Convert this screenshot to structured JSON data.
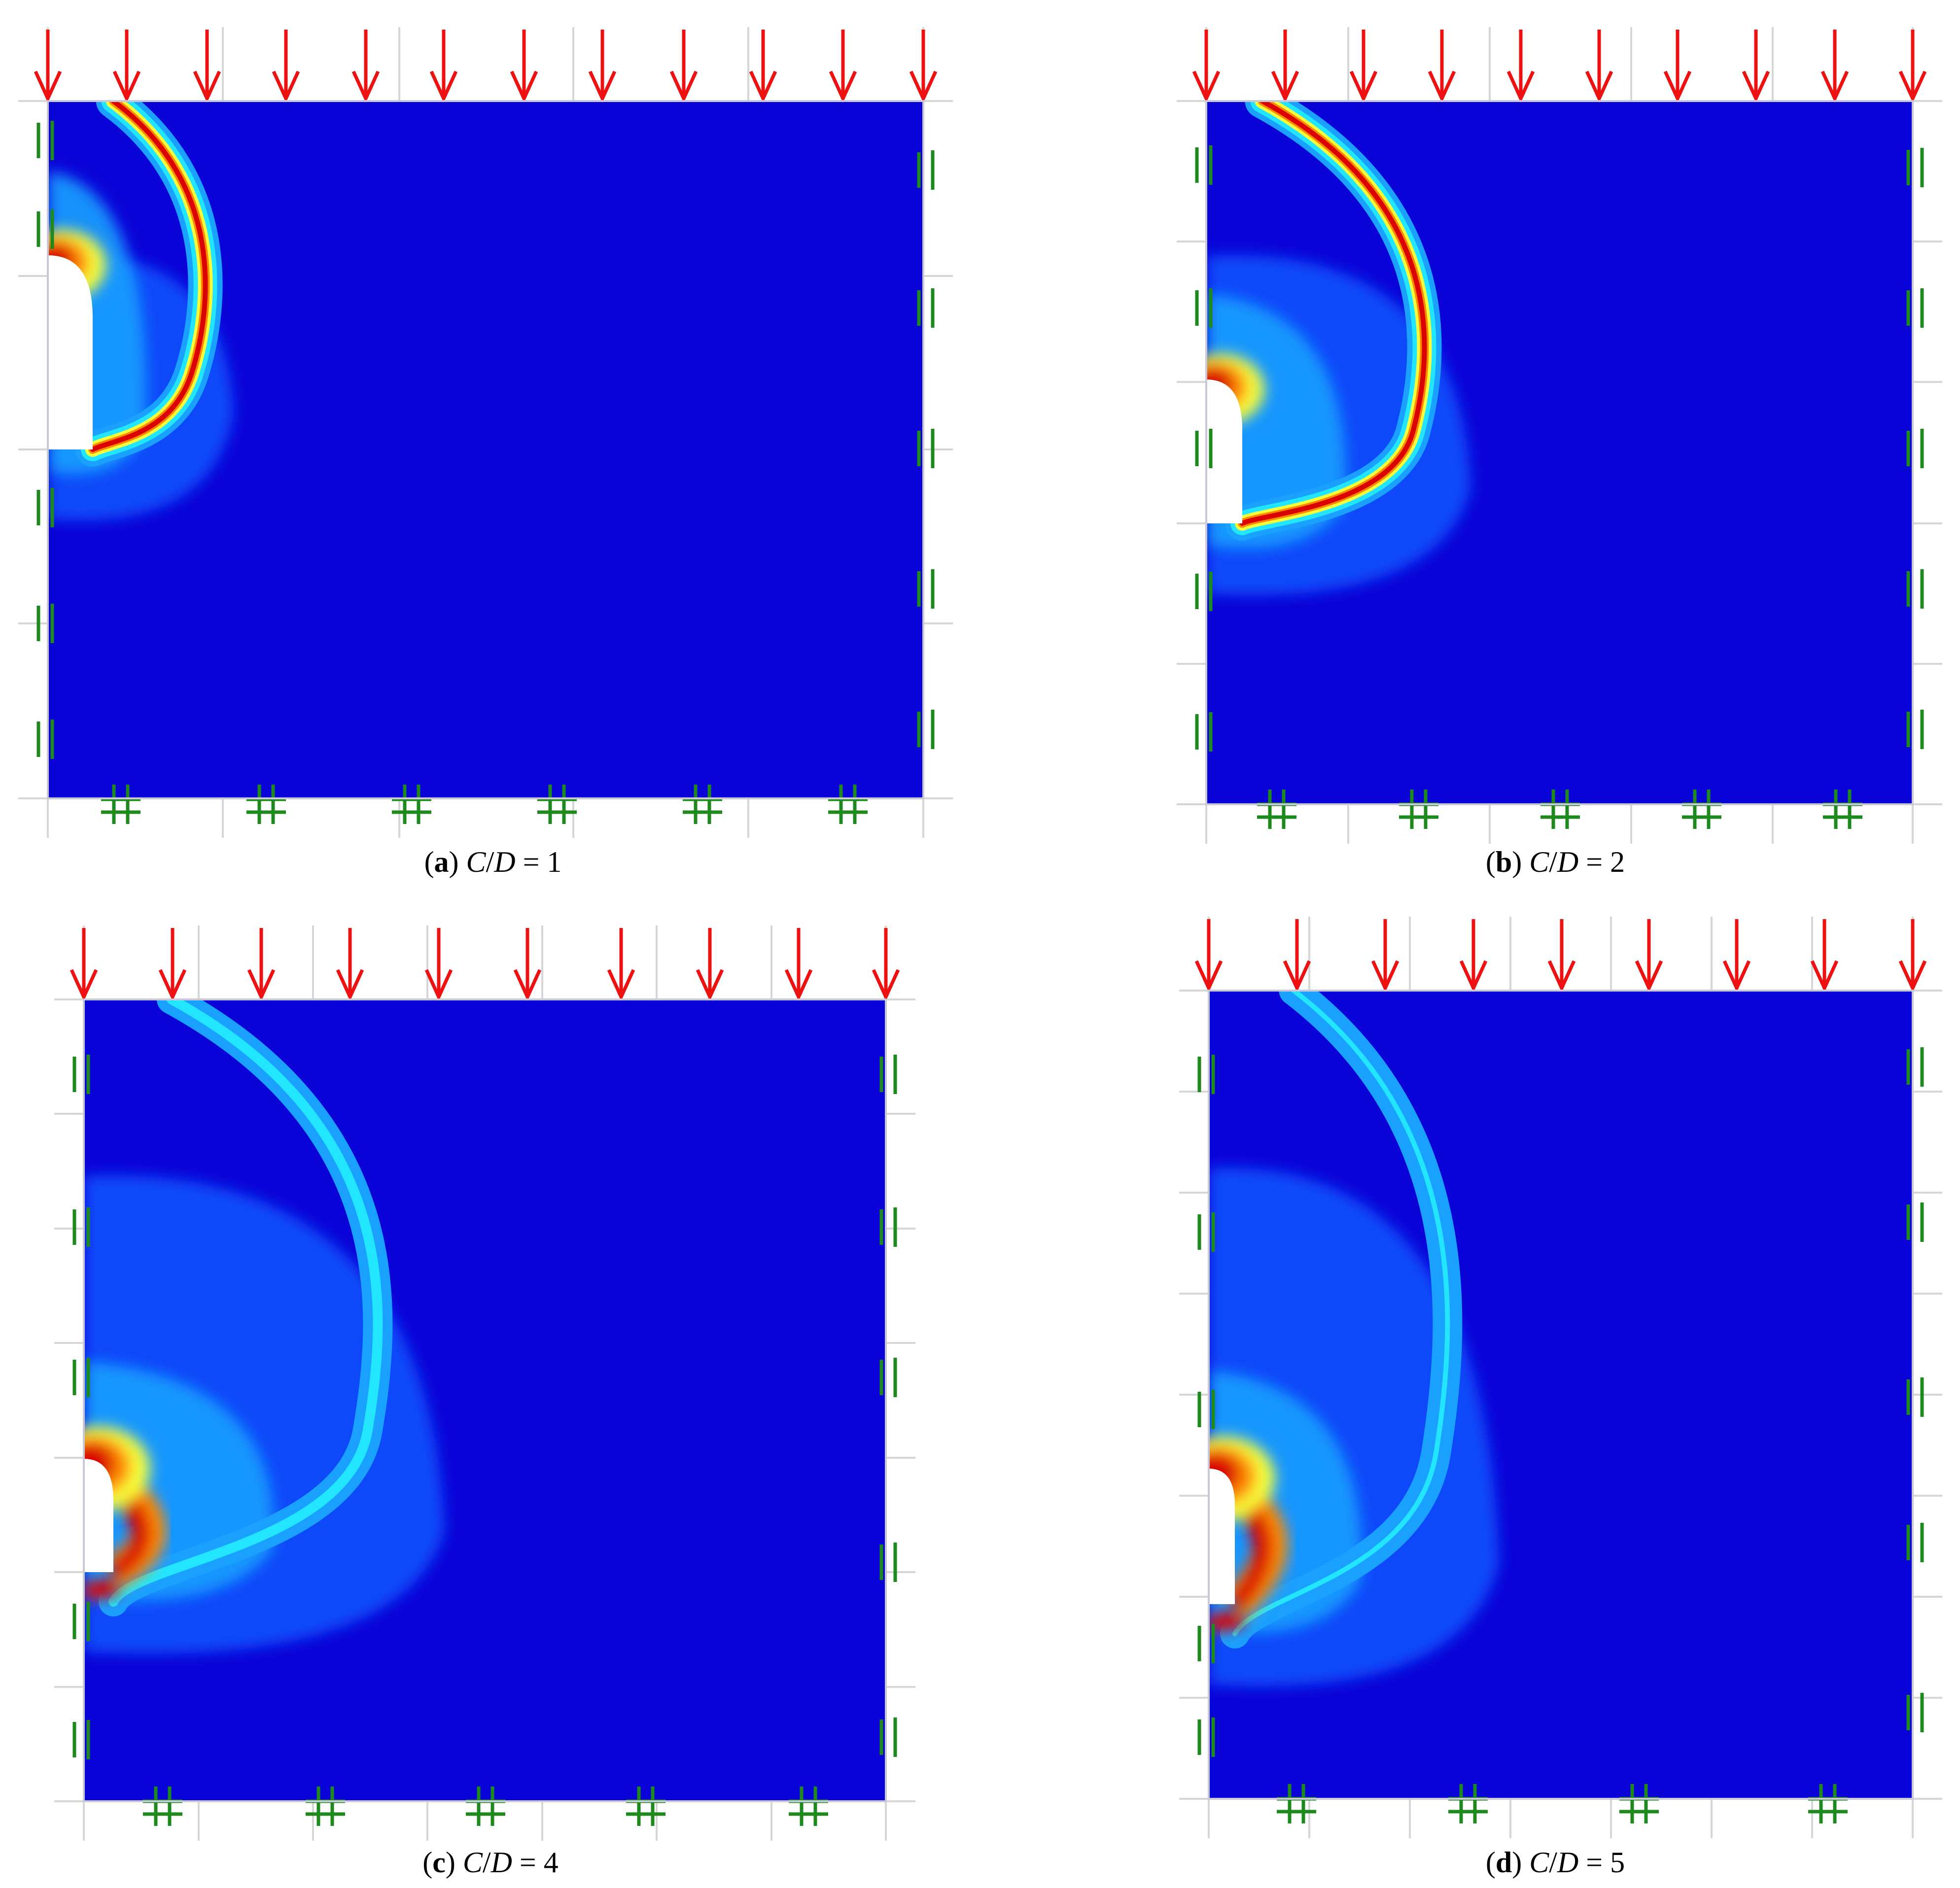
{
  "colors": {
    "field_background": "#0a03d8",
    "field_mid": "#0a55ff",
    "field_light": "#1aa0ff",
    "field_cyan": "#22e6ff",
    "field_yellow": "#f6ff3a",
    "field_orange": "#ff8a00",
    "field_red": "#d90400",
    "load_arrow": "#ee1111",
    "support_symbol": "#1e8a1e",
    "grid_line": "#d6d6d6"
  },
  "legend_icons": {
    "load": "downward-arrow-icon",
    "roller": "double-bar-icon",
    "pinned": "hash-icon"
  },
  "panels": [
    {
      "id": "a",
      "caption": {
        "open": "(",
        "letter": "a",
        "close": ")",
        "var1": "C",
        "slash": "/",
        "var2": "D",
        "equals": " = ",
        "value": "1"
      },
      "cover_to_diameter": 1,
      "intensity": "high"
    },
    {
      "id": "b",
      "caption": {
        "open": "(",
        "letter": "b",
        "close": ")",
        "var1": "C",
        "slash": "/",
        "var2": "D",
        "equals": " = ",
        "value": "2"
      },
      "cover_to_diameter": 2,
      "intensity": "high"
    },
    {
      "id": "c",
      "caption": {
        "open": "(",
        "letter": "c",
        "close": ")",
        "var1": "C",
        "slash": "/",
        "var2": "D",
        "equals": " = ",
        "value": "4"
      },
      "cover_to_diameter": 4,
      "intensity": "medium"
    },
    {
      "id": "d",
      "caption": {
        "open": "(",
        "letter": "d",
        "close": ")",
        "var1": "C",
        "slash": "/",
        "var2": "D",
        "equals": " = ",
        "value": "5"
      },
      "cover_to_diameter": 5,
      "intensity": "low"
    }
  ]
}
